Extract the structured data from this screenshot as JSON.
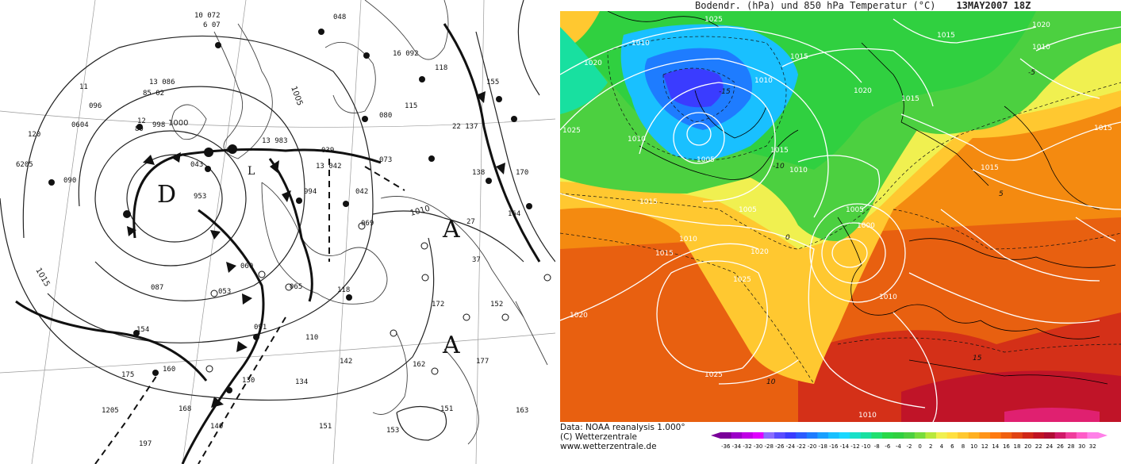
{
  "left_panel": {
    "high_label": "A",
    "low_label": "D",
    "small_low_label": "L",
    "isobar_labels": [
      "1000",
      "1005",
      "1010",
      "1015"
    ]
  },
  "right_panel": {
    "title": "Bodendr. (hPa) und 850 hPa Temperatur (°C)",
    "date": "13MAY2007 18Z",
    "footer": {
      "data_line": "Data: NOAA reanalysis 1.000°",
      "copyright_line": "(C) Wetterzentrale",
      "url_line": "www.wetterzentrale.de"
    },
    "pressure_labels": [
      "1025",
      "1010",
      "1015",
      "1020",
      "1010",
      "1015",
      "1005",
      "1015",
      "1020",
      "1010",
      "1015",
      "1025",
      "1010",
      "1005",
      "1015",
      "1010",
      "1015",
      "1020",
      "1005",
      "1000",
      "1025",
      "1020",
      "1010",
      "1015",
      "1025",
      "1020",
      "1010",
      "1010",
      "1015"
    ],
    "temperature_colorbar": {
      "ticks": [
        "-36",
        "-34",
        "-32",
        "-30",
        "-28",
        "-26",
        "-24",
        "-22",
        "-20",
        "-18",
        "-16",
        "-14",
        "-12",
        "-10",
        "-8",
        "-6",
        "-4",
        "-2",
        "0",
        "2",
        "4",
        "6",
        "8",
        "10",
        "12",
        "14",
        "16",
        "18",
        "20",
        "22",
        "24",
        "26",
        "28",
        "30",
        "32"
      ],
      "colors": [
        "#7a0099",
        "#9c00c8",
        "#c000e6",
        "#e000ff",
        "#8a6cff",
        "#5a4cff",
        "#3a3cff",
        "#2c5cff",
        "#1e7cff",
        "#1aa0ff",
        "#19c0ff",
        "#1ad8ff",
        "#18e0c8",
        "#18e0a0",
        "#20e070",
        "#28d848",
        "#30d040",
        "#4cd040",
        "#78dc3c",
        "#b8e83c",
        "#f0f050",
        "#ffe040",
        "#ffc830",
        "#ffb020",
        "#ff9418",
        "#ff7a10",
        "#f06010",
        "#e04414",
        "#d02818",
        "#c01424",
        "#b00c34",
        "#d01868",
        "#f03c9c",
        "#ff5cc8",
        "#ff80e8"
      ]
    },
    "contour_labels_temp": [
      "-15",
      "-10",
      "-5",
      "0",
      "5",
      "10",
      "15"
    ]
  },
  "colors": {
    "isobar_left": "#222222",
    "isobar_right": "#ffffff",
    "coast": "#000000"
  }
}
